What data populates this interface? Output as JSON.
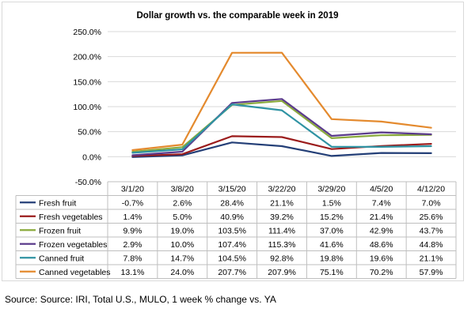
{
  "chart_data": {
    "type": "line",
    "title": "Dollar growth vs. the comparable week in 2019",
    "categories": [
      "3/1/20",
      "3/8/20",
      "3/15/20",
      "3/22/20",
      "3/29/20",
      "4/5/20",
      "4/12/20"
    ],
    "ylim": [
      -50,
      250
    ],
    "yticks": [
      "250.0%",
      "200.0%",
      "150.0%",
      "100.0%",
      "50.0%",
      "0.0%",
      "-50.0%"
    ],
    "ytick_values": [
      250,
      200,
      150,
      100,
      50,
      0,
      -50
    ],
    "grid": "horizontal",
    "legend": "data-table",
    "series": [
      {
        "name": "Fresh fruit",
        "color": "#243f77",
        "values": [
          -0.7,
          2.6,
          28.4,
          21.1,
          1.5,
          7.4,
          7.0
        ],
        "labels": [
          "-0.7%",
          "2.6%",
          "28.4%",
          "21.1%",
          "1.5%",
          "7.4%",
          "7.0%"
        ]
      },
      {
        "name": "Fresh vegetables",
        "color": "#9b1c1c",
        "values": [
          1.4,
          5.0,
          40.9,
          39.2,
          15.2,
          21.4,
          25.6
        ],
        "labels": [
          "1.4%",
          "5.0%",
          "40.9%",
          "39.2%",
          "15.2%",
          "21.4%",
          "25.6%"
        ]
      },
      {
        "name": "Frozen fruit",
        "color": "#8aaa3c",
        "values": [
          9.9,
          19.0,
          103.5,
          111.4,
          37.0,
          42.9,
          43.7
        ],
        "labels": [
          "9.9%",
          "19.0%",
          "103.5%",
          "111.4%",
          "37.0%",
          "42.9%",
          "43.7%"
        ]
      },
      {
        "name": "Frozen vegetables",
        "color": "#5b3b8c",
        "values": [
          2.9,
          10.0,
          107.4,
          115.3,
          41.6,
          48.6,
          44.8
        ],
        "labels": [
          "2.9%",
          "10.0%",
          "107.4%",
          "115.3%",
          "41.6%",
          "48.6%",
          "44.8%"
        ]
      },
      {
        "name": "Canned fruit",
        "color": "#2f93a3",
        "values": [
          7.8,
          14.7,
          104.5,
          92.8,
          19.8,
          19.6,
          21.1
        ],
        "labels": [
          "7.8%",
          "14.7%",
          "104.5%",
          "92.8%",
          "19.8%",
          "19.6%",
          "21.1%"
        ]
      },
      {
        "name": "Canned vegetables",
        "color": "#e48a2e",
        "values": [
          13.1,
          24.0,
          207.7,
          207.9,
          75.1,
          70.2,
          57.9
        ],
        "labels": [
          "13.1%",
          "24.0%",
          "207.7%",
          "207.9%",
          "75.1%",
          "70.2%",
          "57.9%"
        ]
      }
    ]
  },
  "footer": {
    "source": "Source: Source: IRI, Total U.S., MULO, 1 week % change vs. YA"
  }
}
